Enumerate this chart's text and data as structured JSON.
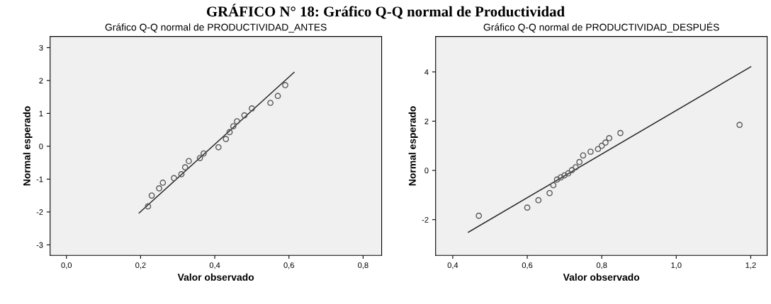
{
  "chart_data": [
    {
      "type": "scatter",
      "title": "Gráfico Q-Q normal de PRODUCTIVIDAD_ANTES",
      "xlabel": "Valor observado",
      "ylabel": "Normal esperado",
      "annotations": [
        "GRÁFICO N° 18: Gráfico Q-Q normal de Productividad"
      ],
      "grid": false,
      "legend": false,
      "xlim": [
        -0.044,
        0.85
      ],
      "ylim": [
        -3.32,
        3.34
      ],
      "xticks": [
        {
          "value": 0.0,
          "label": "0,0"
        },
        {
          "value": 0.2,
          "label": "0,2"
        },
        {
          "value": 0.4,
          "label": "0,4"
        },
        {
          "value": 0.6,
          "label": "0,6"
        },
        {
          "value": 0.8,
          "label": "0,8"
        }
      ],
      "yticks": [
        -3,
        -2,
        -1,
        0,
        1,
        2,
        3
      ],
      "series": [
        {
          "marker": "circle",
          "color": "#595959",
          "x": [
            0.22,
            0.23,
            0.25,
            0.26,
            0.29,
            0.31,
            0.32,
            0.33,
            0.36,
            0.37,
            0.41,
            0.43,
            0.44,
            0.45,
            0.46,
            0.48,
            0.5,
            0.55,
            0.57,
            0.59
          ],
          "values": [
            -1.83,
            -1.5,
            -1.28,
            -1.11,
            -0.97,
            -0.85,
            -0.64,
            -0.45,
            -0.36,
            -0.22,
            -0.03,
            0.22,
            0.43,
            0.61,
            0.76,
            0.94,
            1.15,
            1.32,
            1.53,
            1.86
          ]
        },
        {
          "type": "line",
          "color": "#262626",
          "x": [
            0.196,
            0.614
          ],
          "values": [
            -2.03,
            2.25
          ]
        }
      ]
    },
    {
      "type": "scatter",
      "title": "Gráfico Q-Q normal de PRODUCTIVIDAD_DESPUÉS",
      "xlabel": "Valor observado",
      "ylabel": "Normal esperado",
      "grid": false,
      "legend": false,
      "xlim": [
        0.354,
        1.244
      ],
      "ylim": [
        -3.45,
        5.44
      ],
      "xticks": [
        {
          "value": 0.4,
          "label": "0,4"
        },
        {
          "value": 0.6,
          "label": "0,6"
        },
        {
          "value": 0.8,
          "label": "0,8"
        },
        {
          "value": 1.0,
          "label": "1,0"
        },
        {
          "value": 1.2,
          "label": "1,2"
        }
      ],
      "yticks": [
        -2,
        0,
        2,
        4
      ],
      "series": [
        {
          "marker": "circle",
          "color": "#595959",
          "x": [
            0.47,
            0.6,
            0.63,
            0.66,
            0.67,
            0.68,
            0.69,
            0.7,
            0.71,
            0.72,
            0.73,
            0.74,
            0.75,
            0.77,
            0.79,
            0.8,
            0.81,
            0.82,
            0.85,
            1.17
          ],
          "values": [
            -1.84,
            -1.51,
            -1.21,
            -0.92,
            -0.6,
            -0.37,
            -0.28,
            -0.2,
            -0.12,
            0.01,
            0.13,
            0.34,
            0.61,
            0.76,
            0.87,
            1.0,
            1.13,
            1.31,
            1.52,
            1.85
          ]
        },
        {
          "type": "line",
          "color": "#262626",
          "x": [
            0.442,
            1.2
          ],
          "values": [
            -2.51,
            4.21
          ]
        }
      ]
    }
  ]
}
